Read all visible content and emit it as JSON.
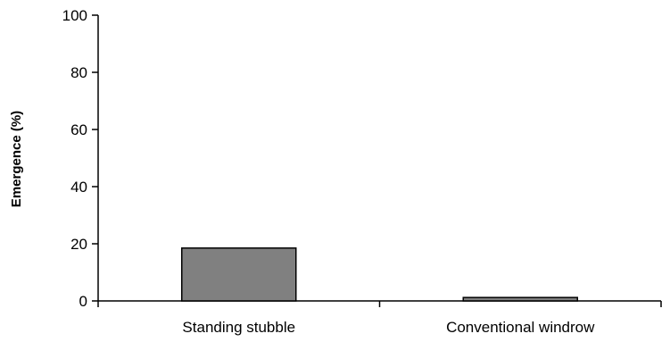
{
  "chart_data": {
    "type": "bar",
    "title": "",
    "xlabel": "",
    "ylabel": "Emergence (%)",
    "categories": [
      "Standing stubble",
      "Conventional windrow"
    ],
    "values": [
      18.5,
      1.2
    ],
    "ylim": [
      0,
      100
    ],
    "yticks": [
      "0",
      "20",
      "40",
      "60",
      "80",
      "100"
    ],
    "grid": false,
    "legend": "none",
    "colors": {
      "bar_fill": "#808080",
      "bar_stroke": "#000000",
      "axis": "#000000"
    }
  }
}
